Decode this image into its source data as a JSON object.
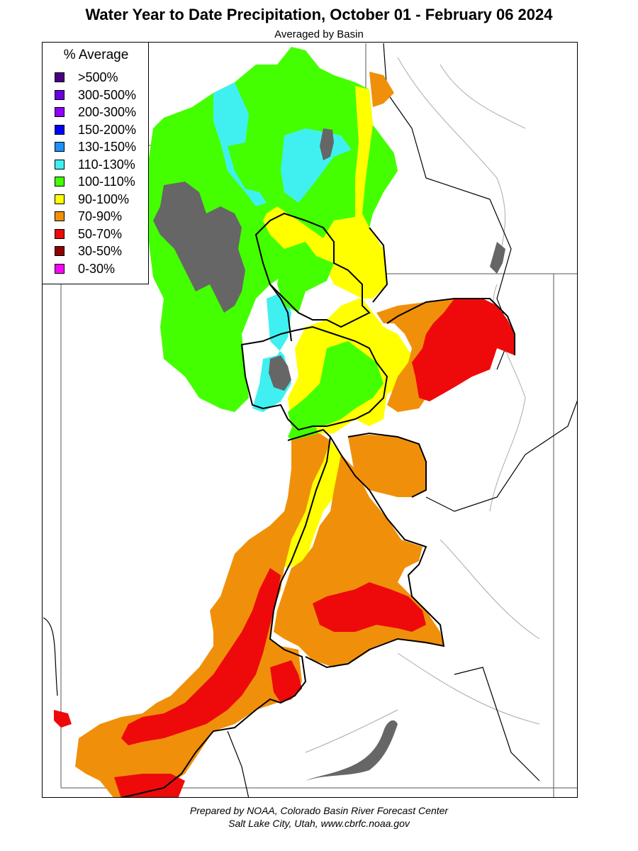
{
  "header": {
    "title": "Water Year to Date Precipitation, October 01  - February 06 2024",
    "subtitle": "Averaged by Basin"
  },
  "legend": {
    "title": "% Average",
    "items": [
      {
        "label": ">500%",
        "color": "#4b0082"
      },
      {
        "label": "300-500%",
        "color": "#6a00e0"
      },
      {
        "label": "200-300%",
        "color": "#8f00ff"
      },
      {
        "label": "150-200%",
        "color": "#0000ff"
      },
      {
        "label": "130-150%",
        "color": "#1e90ff"
      },
      {
        "label": "110-130%",
        "color": "#40f0f0"
      },
      {
        "label": "100-110%",
        "color": "#44ff00"
      },
      {
        "label": "90-100%",
        "color": "#ffff00"
      },
      {
        "label": "70-90%",
        "color": "#f0900a"
      },
      {
        "label": "50-70%",
        "color": "#ee0a0a"
      },
      {
        "label": "30-50%",
        "color": "#900000"
      },
      {
        "label": "0-30%",
        "color": "#ff00ff"
      }
    ]
  },
  "map": {
    "lake_color": "#666666",
    "boundary_color": "#000000",
    "river_color": "#aaaaaa"
  },
  "footer": {
    "line1": "Prepared by NOAA, Colorado Basin River Forecast Center",
    "line2": "Salt Lake City, Utah, www.cbrfc.noaa.gov"
  }
}
